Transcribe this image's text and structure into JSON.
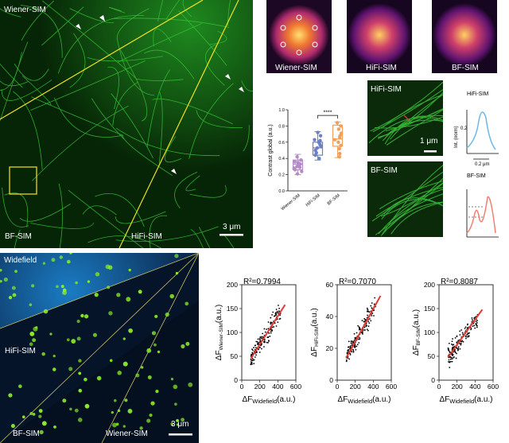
{
  "panel_a": {
    "labels": {
      "wiener": "Wiener-SIM",
      "bf": "BF-SIM",
      "hifi": "HiFi-SIM"
    },
    "scalebar": "3 μm"
  },
  "otf_panels": [
    {
      "label": "Wiener-SIM"
    },
    {
      "label": "HiFi-SIM"
    },
    {
      "label": "BF-SIM"
    }
  ],
  "zoom_panels": {
    "hifi_label": "HiFi-SIM",
    "bf_label": "BF-SIM",
    "scalebar": "1 μm"
  },
  "profiles": {
    "hifi_title": "HiFi-SIM",
    "bf_title": "BF-SIM",
    "ylabel": "Int. (norm)",
    "ytick": "0.2",
    "xscale": "0.2 μm"
  },
  "panel_d": {
    "labels": {
      "widefield": "Widefield",
      "hifi": "HiFi-SIM",
      "bf": "BF-SIM",
      "wiener": "Wiener-SIM"
    },
    "scalebar": "3 μm"
  },
  "chart_data": [
    {
      "type": "box",
      "ylabel": "Contrast global (a.u.)",
      "categories": [
        "Wiener-SIM",
        "HiFi-SIM",
        "BF-SIM"
      ],
      "ylim": [
        0,
        1.0
      ],
      "yticks": [
        "0.0",
        "0.2",
        "0.4",
        "0.6",
        "0.8",
        "1.0"
      ],
      "colors": [
        "#b48cc8",
        "#6b7fc4",
        "#f0a05a"
      ],
      "boxes": [
        {
          "min": 0.2,
          "q1": 0.26,
          "median": 0.33,
          "q3": 0.38,
          "max": 0.45
        },
        {
          "min": 0.38,
          "q1": 0.44,
          "median": 0.53,
          "q3": 0.6,
          "max": 0.73
        },
        {
          "min": 0.41,
          "q1": 0.55,
          "median": 0.64,
          "q3": 0.81,
          "max": 0.85
        }
      ],
      "points": [
        [
          0.42,
          0.38,
          0.35,
          0.33,
          0.31,
          0.3,
          0.28,
          0.26,
          0.24,
          0.21,
          0.36,
          0.29
        ],
        [
          0.72,
          0.68,
          0.63,
          0.6,
          0.57,
          0.53,
          0.5,
          0.47,
          0.44,
          0.4,
          0.55,
          0.62
        ],
        [
          0.84,
          0.8,
          0.76,
          0.71,
          0.66,
          0.63,
          0.6,
          0.56,
          0.52,
          0.46,
          0.42,
          0.68
        ]
      ],
      "significance": "****"
    },
    {
      "type": "scatter",
      "r2": "R²=0.7994",
      "xlabel": "ΔF",
      "xlabel_sub": "Widefield",
      "xlabel_unit": "(a.u.)",
      "ylabel": "ΔF",
      "ylabel_sub": "Wiener-SIM",
      "ylabel_unit": "(a.u.)",
      "xlim": [
        0,
        600
      ],
      "ylim": [
        0,
        200
      ],
      "xticks": [
        0,
        200,
        400,
        600
      ],
      "yticks": [
        0,
        50,
        100,
        150,
        200
      ],
      "fit": [
        [
          100,
          45
        ],
        [
          480,
          158
        ]
      ]
    },
    {
      "type": "scatter",
      "r2": "R²=0.7070",
      "xlabel": "ΔF",
      "xlabel_sub": "Widefield",
      "xlabel_unit": "(a.u.)",
      "ylabel": "ΔF",
      "ylabel_sub": "HiFi-SIM",
      "ylabel_unit": "(a.u.)",
      "xlim": [
        0,
        600
      ],
      "ylim": [
        0,
        60
      ],
      "xticks": [
        0,
        200,
        400,
        600
      ],
      "yticks": [
        0,
        20,
        40,
        60
      ],
      "fit": [
        [
          100,
          14
        ],
        [
          480,
          53
        ]
      ]
    },
    {
      "type": "scatter",
      "r2": "R²=0.8087",
      "xlabel": "ΔF",
      "xlabel_sub": "Widefield",
      "xlabel_unit": "(a.u.)",
      "ylabel": "ΔF",
      "ylabel_sub": "BF-SIM",
      "ylabel_unit": "(a.u.)",
      "xlim": [
        0,
        600
      ],
      "ylim": [
        0,
        200
      ],
      "xticks": [
        0,
        200,
        400,
        600
      ],
      "yticks": [
        0,
        50,
        100,
        150,
        200
      ],
      "fit": [
        [
          100,
          48
        ],
        [
          480,
          148
        ]
      ]
    }
  ]
}
